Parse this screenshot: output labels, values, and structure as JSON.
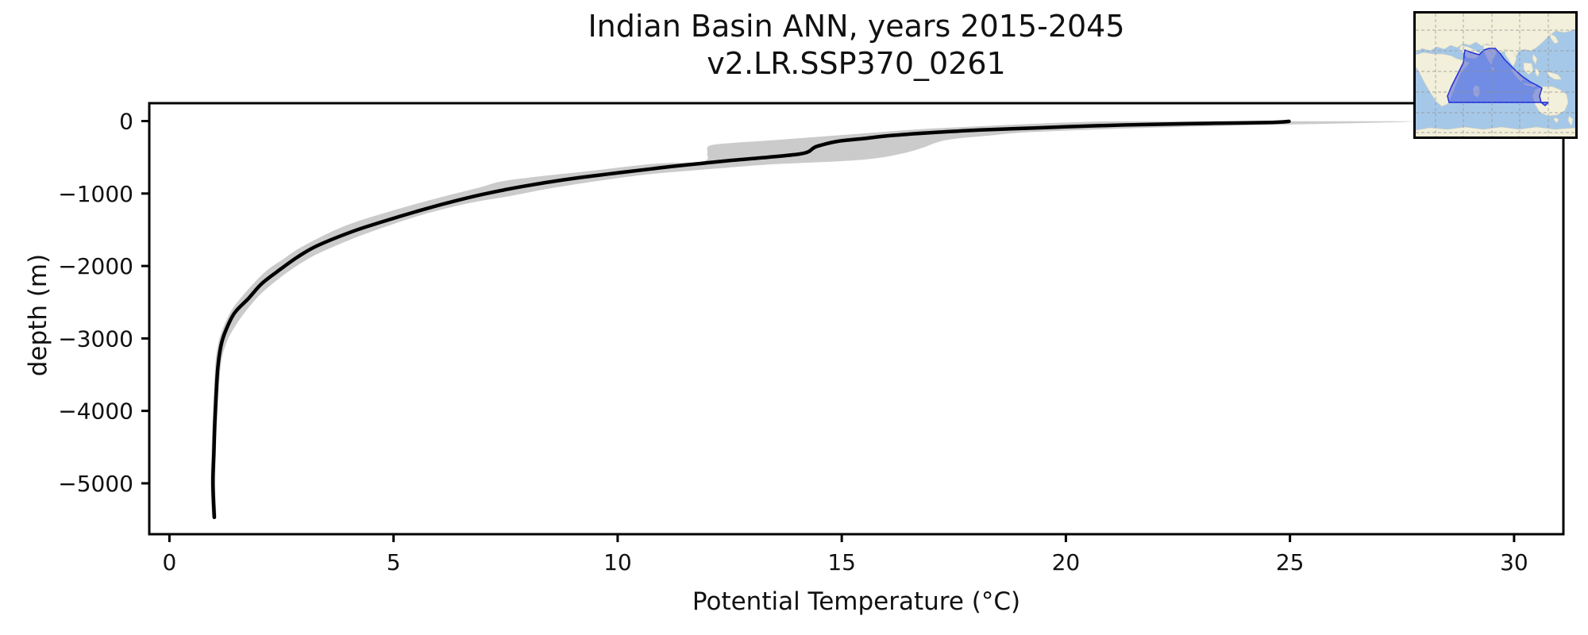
{
  "figure": {
    "title_line1": "Indian Basin ANN, years 2015-2045",
    "title_line2": "v2.LR.SSP370_0261",
    "xlabel": "Potential Temperature (°C)",
    "ylabel": "depth (m)"
  },
  "chart_data": {
    "type": "line",
    "title": "Indian Basin ANN, years 2015-2045 — v2.LR.SSP370_0261",
    "xlabel": "Potential Temperature (°C)",
    "ylabel": "depth (m)",
    "xlim": [
      -0.45,
      31.1
    ],
    "ylim": [
      -5702,
      247
    ],
    "x_ticks": [
      0,
      5,
      10,
      15,
      20,
      25,
      30
    ],
    "x_tick_labels": [
      "0",
      "5",
      "10",
      "15",
      "20",
      "25",
      "30"
    ],
    "y_ticks": [
      0,
      -1000,
      -2000,
      -3000,
      -4000,
      -5000
    ],
    "y_tick_labels": [
      "0",
      "−1000",
      "−2000",
      "−3000",
      "−4000",
      "−5000"
    ],
    "grid": false,
    "legend": "none",
    "line_color": "#000000",
    "band_color": "#cbcbcb",
    "series": [
      {
        "name": "basin-mean potential temperature profile",
        "points_temp_depth": [
          [
            1.0,
            -5470
          ],
          [
            0.97,
            -5000
          ],
          [
            0.99,
            -4600
          ],
          [
            1.01,
            -4200
          ],
          [
            1.04,
            -3800
          ],
          [
            1.08,
            -3400
          ],
          [
            1.15,
            -3100
          ],
          [
            1.25,
            -2900
          ],
          [
            1.45,
            -2650
          ],
          [
            1.76,
            -2450
          ],
          [
            2.05,
            -2250
          ],
          [
            2.4,
            -2080
          ],
          [
            2.85,
            -1880
          ],
          [
            3.3,
            -1720
          ],
          [
            4.1,
            -1520
          ],
          [
            4.75,
            -1390
          ],
          [
            5.5,
            -1250
          ],
          [
            6.2,
            -1130
          ],
          [
            7.0,
            -1010
          ],
          [
            7.9,
            -900
          ],
          [
            8.8,
            -810
          ],
          [
            9.8,
            -730
          ],
          [
            10.75,
            -660
          ],
          [
            11.3,
            -620
          ],
          [
            12.5,
            -545
          ],
          [
            13.4,
            -497
          ],
          [
            14.05,
            -455
          ],
          [
            14.25,
            -425
          ],
          [
            14.32,
            -395
          ],
          [
            14.4,
            -360
          ],
          [
            14.55,
            -330
          ],
          [
            14.9,
            -280
          ],
          [
            15.5,
            -240
          ],
          [
            16.1,
            -200
          ],
          [
            17.1,
            -156
          ],
          [
            18.2,
            -120
          ],
          [
            19.3,
            -95
          ],
          [
            20.7,
            -64
          ],
          [
            21.9,
            -45
          ],
          [
            23.3,
            -30
          ],
          [
            24.6,
            -18
          ],
          [
            24.98,
            -4
          ]
        ]
      }
    ],
    "band": {
      "name": "spread envelope",
      "right_temp_depth": [
        [
          1.05,
          -5470
        ],
        [
          1.02,
          -5000
        ],
        [
          1.06,
          -4200
        ],
        [
          1.14,
          -3400
        ],
        [
          1.28,
          -3050
        ],
        [
          1.5,
          -2800
        ],
        [
          1.8,
          -2550
        ],
        [
          2.1,
          -2350
        ],
        [
          2.6,
          -2100
        ],
        [
          3.1,
          -1900
        ],
        [
          3.6,
          -1750
        ],
        [
          4.4,
          -1550
        ],
        [
          5.6,
          -1300
        ],
        [
          6.7,
          -1130
        ],
        [
          7.6,
          -1035
        ],
        [
          8.4,
          -940
        ],
        [
          9.3,
          -850
        ],
        [
          10.6,
          -740
        ],
        [
          11.7,
          -680
        ],
        [
          12.3,
          -650
        ],
        [
          13.45,
          -597
        ],
        [
          15.0,
          -553
        ],
        [
          15.8,
          -510
        ],
        [
          16.4,
          -440
        ],
        [
          16.8,
          -370
        ],
        [
          17.1,
          -300
        ],
        [
          17.45,
          -250
        ],
        [
          18.3,
          -200
        ],
        [
          19.0,
          -160
        ],
        [
          20.5,
          -120
        ],
        [
          22.0,
          -90
        ],
        [
          24.0,
          -60
        ],
        [
          26.0,
          -35
        ],
        [
          27.4,
          -15
        ],
        [
          27.8,
          -2
        ]
      ],
      "left_temp_depth": [
        [
          0.95,
          -5470
        ],
        [
          0.92,
          -5000
        ],
        [
          0.96,
          -4200
        ],
        [
          1.02,
          -3400
        ],
        [
          1.08,
          -3100
        ],
        [
          1.17,
          -2900
        ],
        [
          1.35,
          -2650
        ],
        [
          1.58,
          -2450
        ],
        [
          2.1,
          -2100
        ],
        [
          2.55,
          -1900
        ],
        [
          3.0,
          -1720
        ],
        [
          3.9,
          -1450
        ],
        [
          4.9,
          -1250
        ],
        [
          6.0,
          -1060
        ],
        [
          6.9,
          -920
        ],
        [
          7.6,
          -813
        ],
        [
          9.5,
          -680
        ],
        [
          10.8,
          -590
        ],
        [
          11.9,
          -555
        ],
        [
          12.0,
          -445
        ],
        [
          12.05,
          -340
        ],
        [
          12.6,
          -300
        ],
        [
          13.45,
          -264
        ],
        [
          15.0,
          -192
        ],
        [
          15.9,
          -150
        ],
        [
          16.8,
          -110
        ],
        [
          17.8,
          -80
        ],
        [
          18.8,
          -50
        ],
        [
          19.8,
          -25
        ],
        [
          20.8,
          -5
        ]
      ]
    }
  },
  "inset": {
    "name": "Indian Basin region locator map",
    "ocean_color": "#a6c8e8",
    "land_color": "#f2efda",
    "region_fill": "#3a4fe0",
    "region_edge": "#2130d8",
    "grid_color": "#909090"
  }
}
